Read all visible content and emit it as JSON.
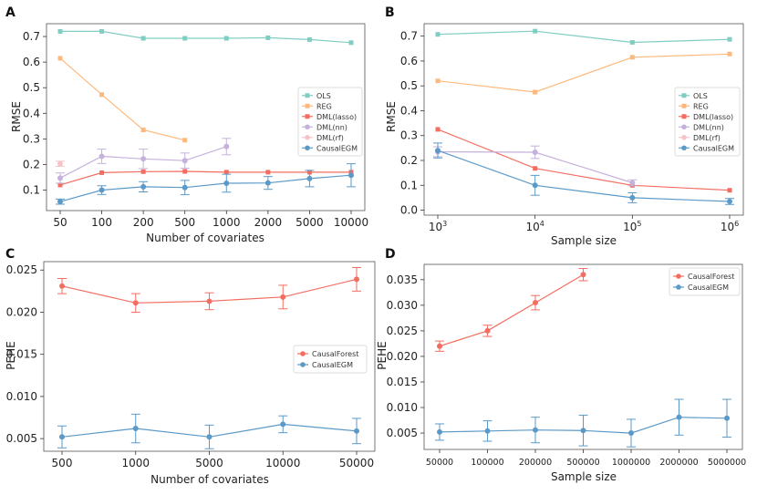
{
  "chart_data": [
    {
      "panel": "A",
      "type": "line",
      "xlabel": "Number of covariates",
      "ylabel": "RMSE",
      "x_scale": "categorical",
      "categories": [
        "50",
        "100",
        "200",
        "500",
        "1000",
        "2000",
        "5000",
        "10000"
      ],
      "ylim": [
        0.02,
        0.75
      ],
      "yticks": [
        0.1,
        0.2,
        0.3,
        0.4,
        0.5,
        0.6,
        0.7
      ],
      "ytick_labels": [
        "0.1",
        "0.2",
        "0.3",
        "0.4",
        "0.5",
        "0.6",
        "0.7"
      ],
      "legend": "center-right",
      "series": [
        {
          "name": "OLS",
          "color": "#7fcdc3",
          "marker": "square",
          "values": [
            0.72,
            0.72,
            0.693,
            0.693,
            0.693,
            0.695,
            0.688,
            0.676
          ]
        },
        {
          "name": "REG",
          "color": "#fdb97d",
          "marker": "square",
          "values": [
            0.615,
            0.473,
            0.335,
            0.295,
            null,
            null,
            null,
            null
          ]
        },
        {
          "name": "DML(lasso)",
          "color": "#f36e61",
          "marker": "square",
          "values": [
            0.12,
            0.168,
            0.172,
            0.173,
            0.17,
            0.17,
            0.17,
            0.17
          ]
        },
        {
          "name": "DML(nn)",
          "color": "#c5b1dc",
          "marker": "circle",
          "values": [
            0.147,
            0.232,
            0.222,
            0.215,
            0.27,
            null,
            null,
            null
          ],
          "errors": [
            0.02,
            0.028,
            0.038,
            0.03,
            0.032,
            null,
            null,
            null
          ]
        },
        {
          "name": "DML(rf)",
          "color": "#f5c3c8",
          "marker": "circle",
          "values": [
            0.203,
            null,
            null,
            null,
            null,
            null,
            null,
            null
          ],
          "errors": [
            0.01,
            null,
            null,
            null,
            null,
            null,
            null,
            null
          ]
        },
        {
          "name": "CausalEGM",
          "color": "#5b9ac8",
          "marker": "circle",
          "values": [
            0.055,
            0.1,
            0.113,
            0.11,
            0.127,
            0.128,
            0.145,
            0.158
          ],
          "errors": [
            0.01,
            0.017,
            0.02,
            0.028,
            0.035,
            0.025,
            0.032,
            0.045
          ]
        }
      ]
    },
    {
      "panel": "B",
      "type": "line",
      "xlabel": "Sample size",
      "ylabel": "RMSE",
      "x_scale": "log",
      "x": [
        1000,
        10000,
        100000,
        1000000
      ],
      "xtick_labels": [
        {
          "base": "10",
          "exp": "3"
        },
        {
          "base": "10",
          "exp": "4"
        },
        {
          "base": "10",
          "exp": "5"
        },
        {
          "base": "10",
          "exp": "6"
        }
      ],
      "ylim": [
        -0.02,
        0.75
      ],
      "yticks": [
        0.0,
        0.1,
        0.2,
        0.3,
        0.4,
        0.5,
        0.6,
        0.7
      ],
      "ytick_labels": [
        "0.0",
        "0.1",
        "0.2",
        "0.3",
        "0.4",
        "0.5",
        "0.6",
        "0.7"
      ],
      "legend": "center-right",
      "series": [
        {
          "name": "OLS",
          "color": "#7fcdc3",
          "marker": "square",
          "values": [
            0.707,
            0.72,
            0.675,
            0.687
          ]
        },
        {
          "name": "REG",
          "color": "#fdb97d",
          "marker": "square",
          "values": [
            0.52,
            0.475,
            0.615,
            0.628
          ]
        },
        {
          "name": "DML(lasso)",
          "color": "#f36e61",
          "marker": "square",
          "values": [
            0.325,
            0.168,
            0.1,
            0.08
          ]
        },
        {
          "name": "DML(nn)",
          "color": "#c5b1dc",
          "marker": "circle",
          "values": [
            0.235,
            0.233,
            0.11,
            null
          ],
          "errors": [
            0.02,
            0.025,
            0.012,
            null
          ]
        },
        {
          "name": "DML(rf)",
          "color": "#f5c3c8",
          "marker": "circle",
          "values": [
            null,
            null,
            null,
            null
          ],
          "errors": [
            null,
            null,
            null,
            null
          ]
        },
        {
          "name": "CausalEGM",
          "color": "#5b9ac8",
          "marker": "circle",
          "values": [
            0.24,
            0.1,
            0.05,
            0.035
          ],
          "errors": [
            0.03,
            0.04,
            0.02,
            0.012
          ]
        }
      ]
    },
    {
      "panel": "C",
      "type": "line",
      "xlabel": "Number of covariates",
      "ylabel": "PEHE",
      "x_scale": "categorical",
      "categories": [
        "500",
        "1000",
        "5000",
        "10000",
        "50000"
      ],
      "ylim": [
        0.0035,
        0.026
      ],
      "yticks": [
        0.005,
        0.01,
        0.015,
        0.02,
        0.025
      ],
      "ytick_labels": [
        "0.005",
        "0.010",
        "0.015",
        "0.020",
        "0.025"
      ],
      "legend": "center-right",
      "series": [
        {
          "name": "CausalForest",
          "color": "#f36e61",
          "marker": "circle",
          "values": [
            0.0231,
            0.0211,
            0.0213,
            0.0218,
            0.0239
          ],
          "errors": [
            0.0009,
            0.0011,
            0.001,
            0.0014,
            0.0014
          ]
        },
        {
          "name": "CausalEGM",
          "color": "#5b9ac8",
          "marker": "circle",
          "values": [
            0.0052,
            0.0062,
            0.0052,
            0.0067,
            0.0059
          ],
          "errors": [
            0.0013,
            0.0017,
            0.0014,
            0.001,
            0.0015
          ]
        }
      ]
    },
    {
      "panel": "D",
      "type": "line",
      "xlabel": "Sample size",
      "ylabel": "PEHE",
      "x_scale": "categorical",
      "categories": [
        "50000",
        "100000",
        "200000",
        "500000",
        "1000000",
        "2000000",
        "5000000"
      ],
      "ylim": [
        0.0018,
        0.038
      ],
      "yticks": [
        0.005,
        0.01,
        0.015,
        0.02,
        0.025,
        0.03,
        0.035
      ],
      "ytick_labels": [
        "0.005",
        "0.010",
        "0.015",
        "0.020",
        "0.025",
        "0.030",
        "0.035"
      ],
      "legend": "top-right",
      "series": [
        {
          "name": "CausalForest",
          "color": "#f36e61",
          "marker": "circle",
          "values": [
            0.022,
            0.025,
            0.0305,
            0.036,
            null,
            null,
            null
          ],
          "errors": [
            0.001,
            0.0011,
            0.0014,
            0.0012,
            null,
            null,
            null
          ]
        },
        {
          "name": "CausalEGM",
          "color": "#5b9ac8",
          "marker": "circle",
          "values": [
            0.0052,
            0.0054,
            0.0056,
            0.0055,
            0.005,
            0.0081,
            0.0079
          ],
          "errors": [
            0.0016,
            0.002,
            0.0025,
            0.003,
            0.0027,
            0.0035,
            0.0037
          ]
        }
      ]
    }
  ]
}
